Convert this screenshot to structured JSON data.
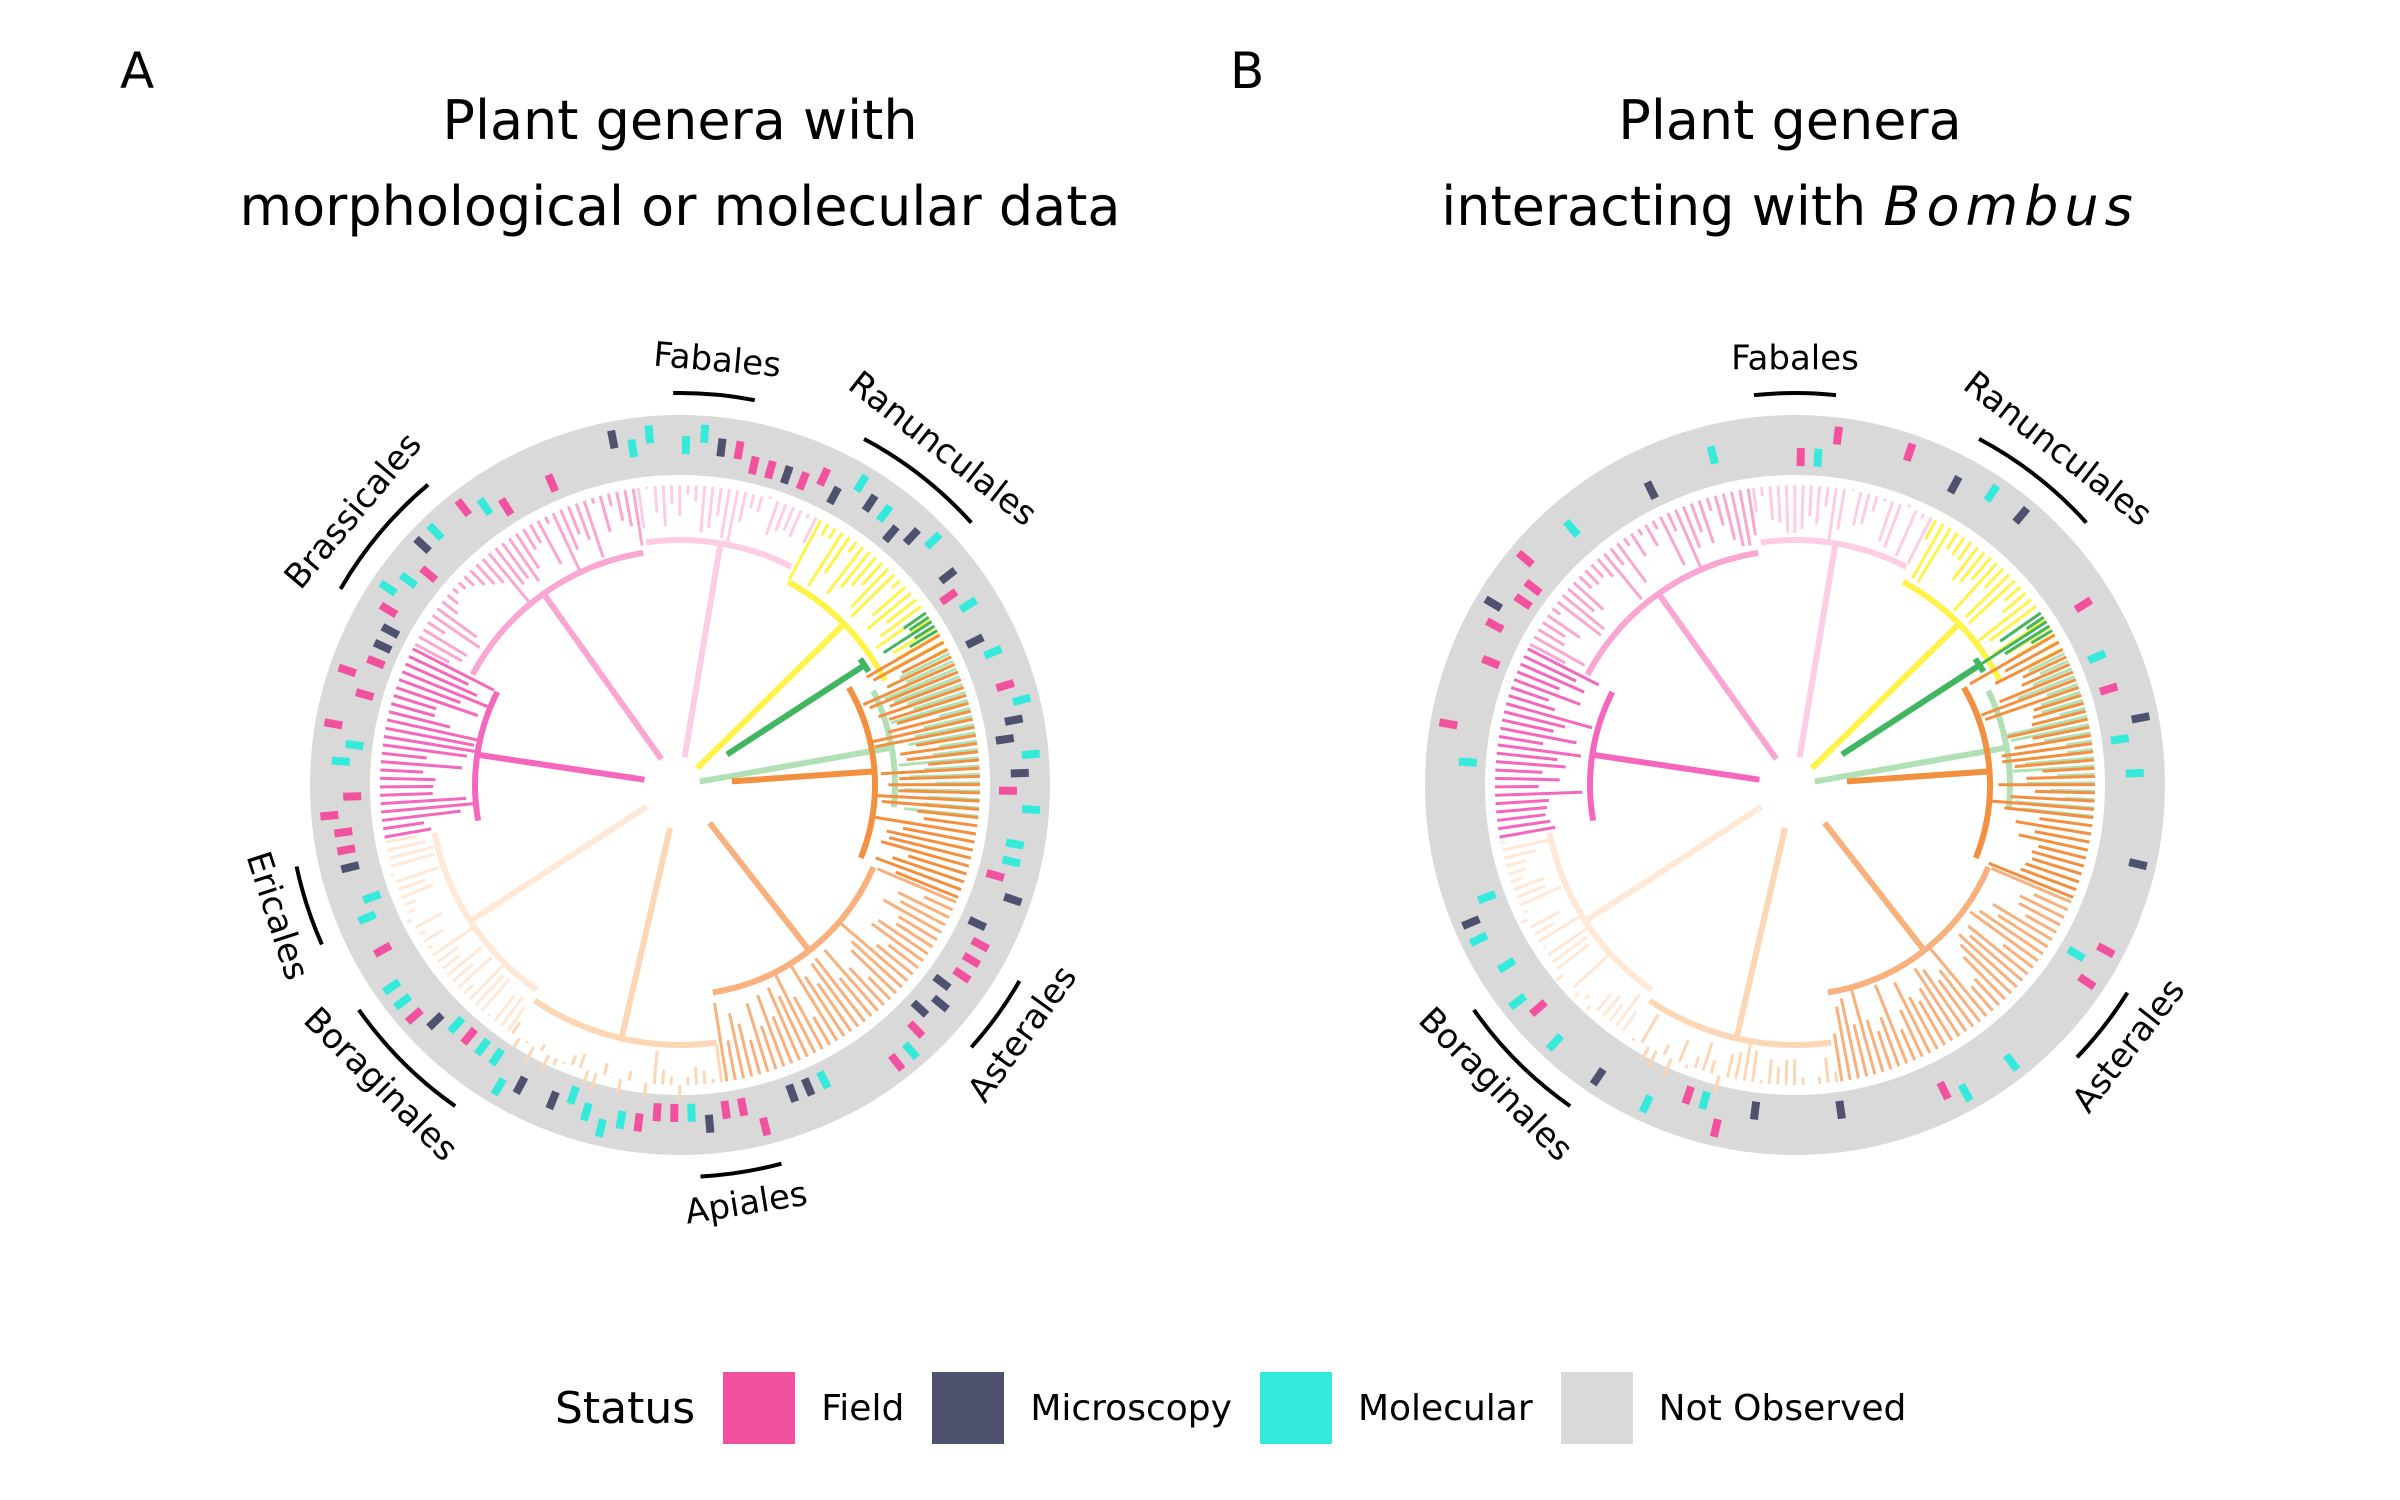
{
  "panels": [
    {
      "letter": "A",
      "title_line1": "Plant genera with",
      "title_line2": "morphological or molecular data",
      "title_italic": "",
      "orders": [
        {
          "name": "Fabales",
          "angle": 5
        },
        {
          "name": "Ranunculales",
          "angle": 38
        },
        {
          "name": "Brassicales",
          "angle": -50
        },
        {
          "name": "Ericales",
          "angle": -108
        },
        {
          "name": "Boraginales",
          "angle": -135
        },
        {
          "name": "Apiales",
          "angle": 171
        },
        {
          "name": "Asterales",
          "angle": 126
        }
      ],
      "ring_density": 0.75
    },
    {
      "letter": "B",
      "title_line1": "Plant genera",
      "title_line2": "interacting with ",
      "title_italic": "Bombus",
      "orders": [
        {
          "name": "Fabales",
          "angle": 0
        },
        {
          "name": "Ranunculales",
          "angle": 38
        },
        {
          "name": "Boraginales",
          "angle": -135
        },
        {
          "name": "Asterales",
          "angle": 128
        }
      ],
      "ring_density": 0.35
    }
  ],
  "legend": {
    "title": "Status",
    "items": [
      {
        "label": "Field",
        "color": "#F2529D"
      },
      {
        "label": "Microscopy",
        "color": "#4E526E"
      },
      {
        "label": "Molecular",
        "color": "#36EADB"
      },
      {
        "label": "Not Observed",
        "color": "#D9D9D9"
      }
    ]
  },
  "clade_colors": [
    "#41B661",
    "#B2E0B5",
    "#FFF34A",
    "#FFCCE5",
    "#FAA6D2",
    "#F566BD",
    "#FFE8D6",
    "#FDD6B6",
    "#F8B07C",
    "#F29040"
  ]
}
